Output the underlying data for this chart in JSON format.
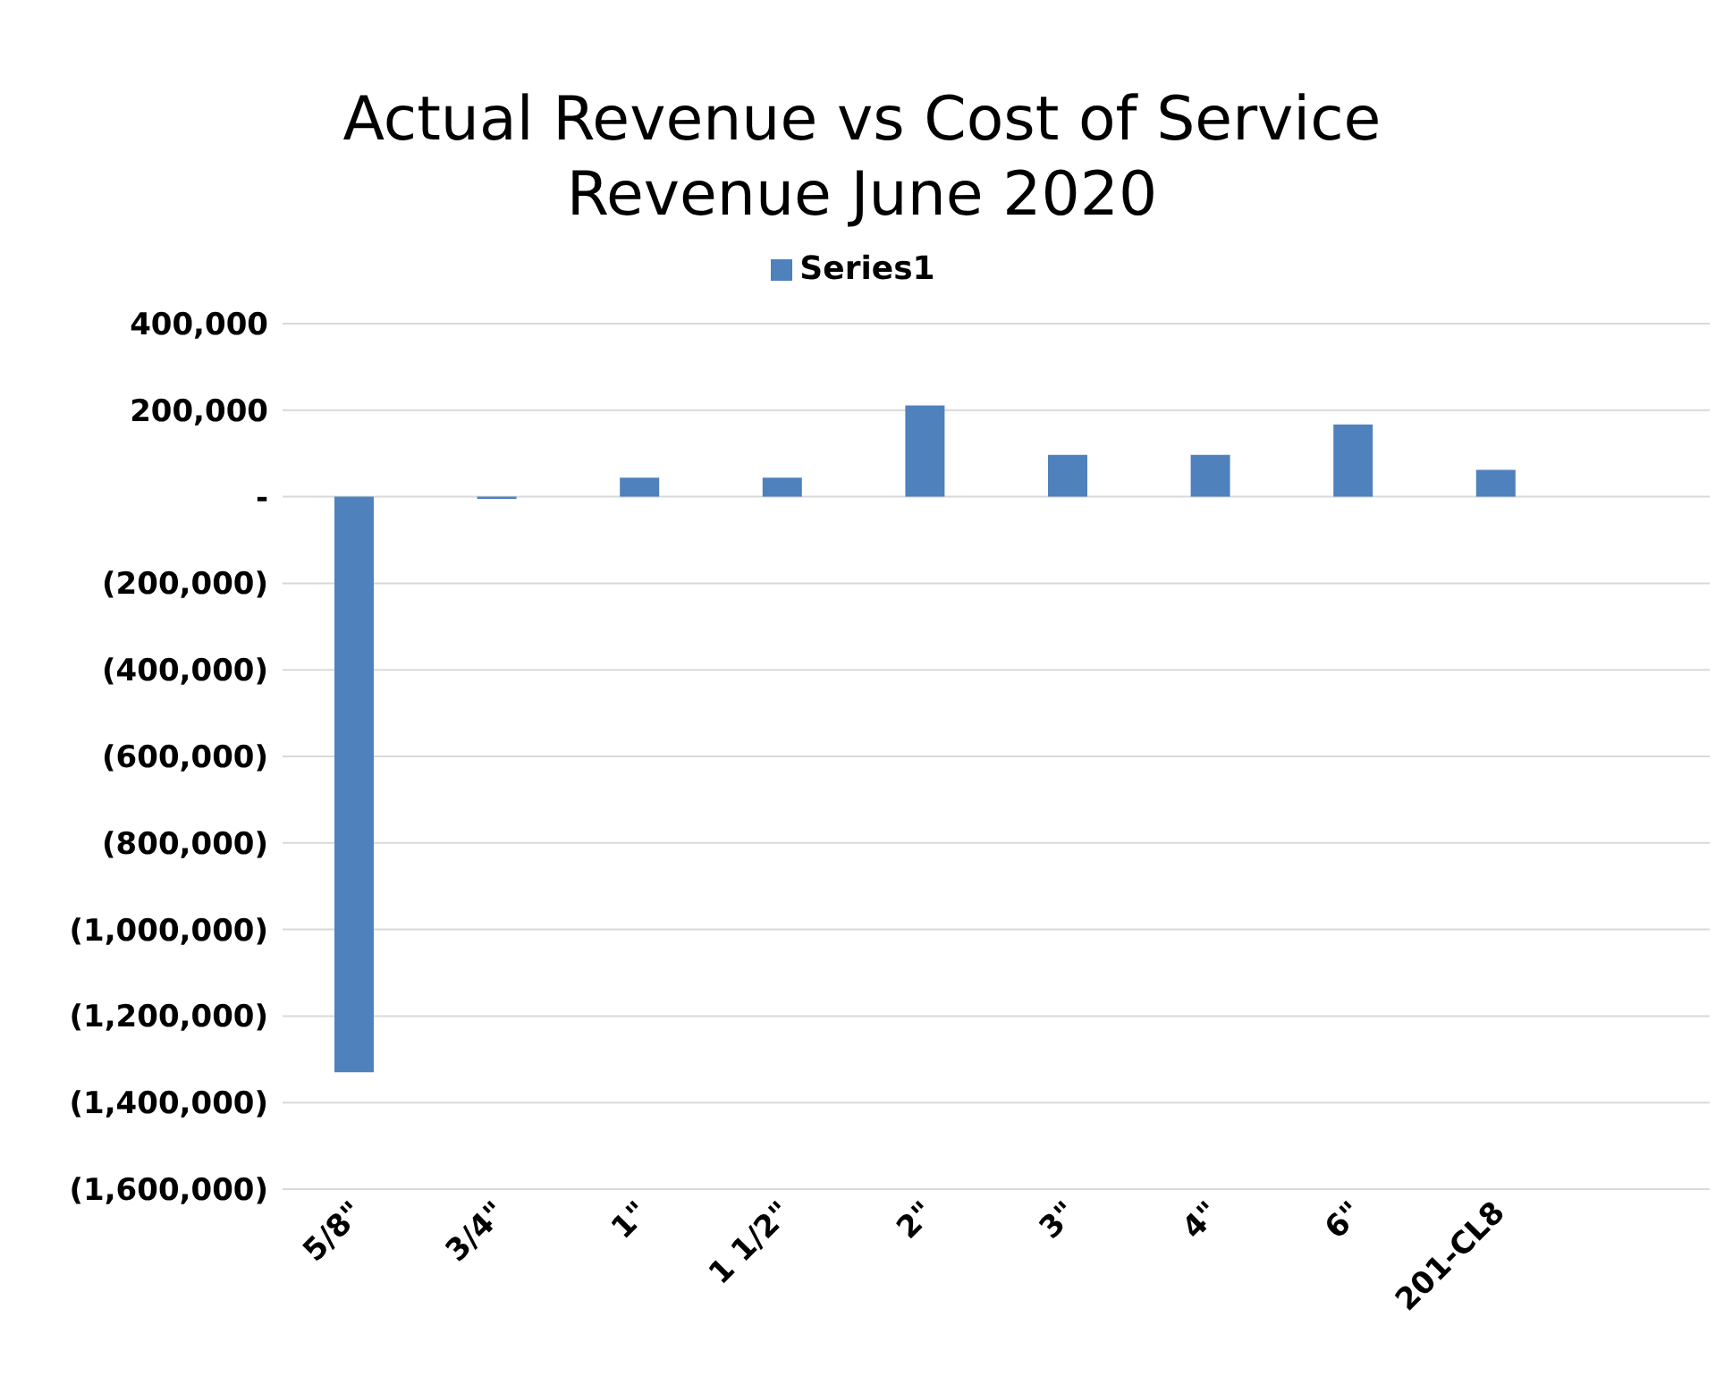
{
  "chart_data": {
    "type": "bar",
    "title": "Actual Revenue vs Cost of Service\nRevenue June 2020",
    "categories": [
      "5/8\"",
      "3/4\"",
      "1\"",
      "1 1/2\"",
      "2\"",
      "3\"",
      "4\"",
      "6\"",
      "201-CL8",
      null
    ],
    "series": [
      {
        "name": "Series1",
        "color": "#4f81bd",
        "values": [
          -1330000,
          -5000,
          44000,
          44000,
          211000,
          97000,
          97000,
          167000,
          62000,
          null
        ]
      }
    ],
    "ylim": [
      -1600000,
      400000
    ],
    "yticks": [
      {
        "value": 400000,
        "label": "400,000"
      },
      {
        "value": 200000,
        "label": "200,000"
      },
      {
        "value": 0,
        "label": "-"
      },
      {
        "value": -200000,
        "label": "(200,000)"
      },
      {
        "value": -400000,
        "label": "(400,000)"
      },
      {
        "value": -600000,
        "label": "(600,000)"
      },
      {
        "value": -800000,
        "label": "(800,000)"
      },
      {
        "value": -1000000,
        "label": "(1,000,000)"
      },
      {
        "value": -1200000,
        "label": "(1,200,000)"
      },
      {
        "value": -1400000,
        "label": "(1,400,000)"
      },
      {
        "value": -1600000,
        "label": "(1,600,000)"
      }
    ],
    "grid": "y",
    "legend": "top"
  }
}
